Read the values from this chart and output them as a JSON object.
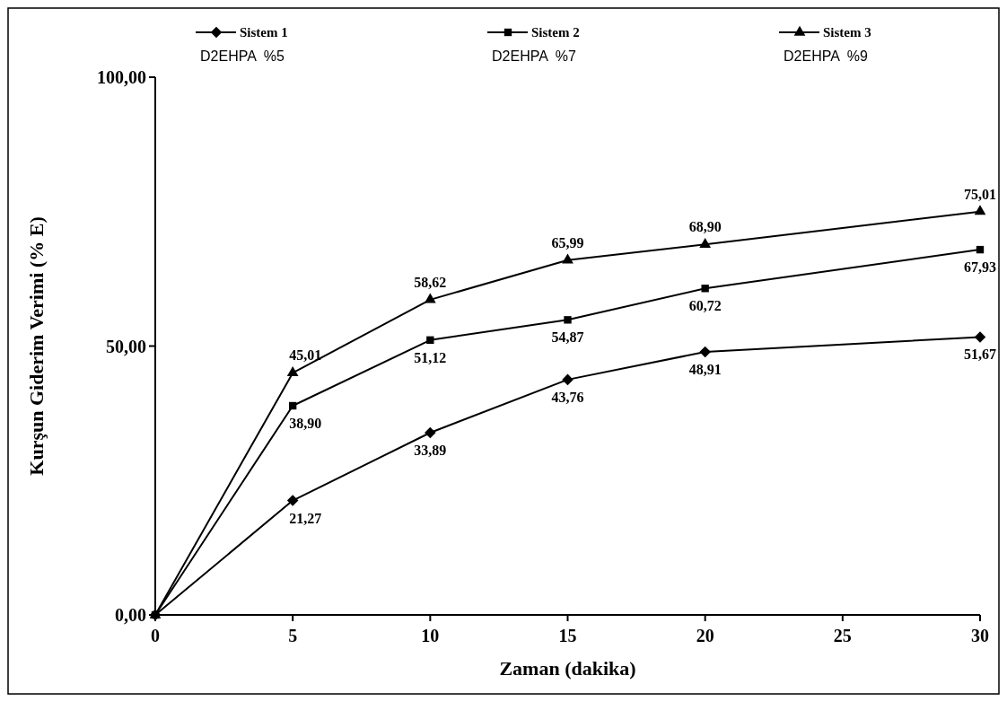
{
  "chart_data": {
    "type": "line",
    "xlabel": "Zaman (dakika)",
    "ylabel": "Kurşun Giderim Verimi (% E)",
    "x": [
      0,
      5,
      10,
      15,
      20,
      30
    ],
    "xlim": [
      0,
      30
    ],
    "xticks": [
      0,
      5,
      10,
      15,
      20,
      25,
      30
    ],
    "ylim": [
      0,
      100
    ],
    "yticks": [
      {
        "value": 0,
        "label": "0,00"
      },
      {
        "value": 50,
        "label": "50,00"
      },
      {
        "value": 100,
        "label": "100,00"
      }
    ],
    "grid": false,
    "legend": "top",
    "line_style": "solid",
    "series": [
      {
        "name": "Sistem 1",
        "color": "#000000",
        "marker": "diamond",
        "values": [
          0,
          21.27,
          33.89,
          43.76,
          48.91,
          51.67
        ],
        "value_labels": [
          null,
          "21,27",
          "33,89",
          "43,76",
          "48,91",
          "51,67"
        ]
      },
      {
        "name": "Sistem 2",
        "color": "#000000",
        "marker": "square",
        "values": [
          0,
          38.9,
          51.12,
          54.87,
          60.72,
          67.93
        ],
        "value_labels": [
          null,
          "38,90",
          "51,12",
          "54,87",
          "60,72",
          "67,93"
        ]
      },
      {
        "name": "Sistem 3",
        "color": "#000000",
        "marker": "triangle",
        "values": [
          0,
          45.01,
          58.62,
          65.99,
          68.9,
          75.01
        ],
        "value_labels": [
          null,
          "45,01",
          "58,62",
          "65,99",
          "68,90",
          "75,01"
        ]
      }
    ],
    "annotations": [
      "D2EHPA  %5",
      "D2EHPA  %7",
      "D2EHPA  %9"
    ]
  }
}
